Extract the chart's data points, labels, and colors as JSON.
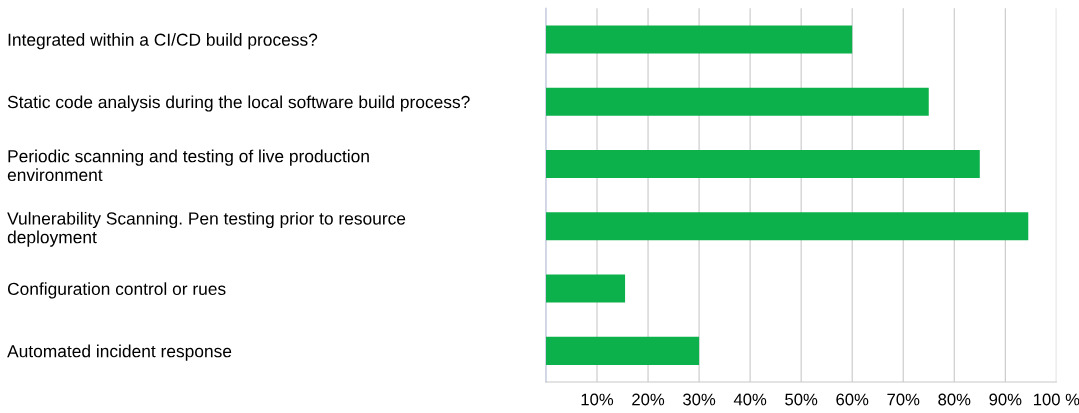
{
  "chart_data": {
    "type": "bar",
    "orientation": "horizontal",
    "categories": [
      "Integrated within a CI/CD build process?",
      "Static code analysis during the local software build process?",
      "Periodic scanning and testing of live production\nenvironment",
      "Vulnerability Scanning. Pen testing prior to resource\ndeployment",
      "Configuration control or rues",
      "Automated incident response"
    ],
    "values": [
      60,
      75,
      85,
      94.5,
      15.5,
      30
    ],
    "color": "#0db14b",
    "xlim": [
      0,
      100
    ],
    "xticks": [
      {
        "value": 10,
        "label": "10%"
      },
      {
        "value": 20,
        "label": "20%"
      },
      {
        "value": 30,
        "label": "30%"
      },
      {
        "value": 40,
        "label": "40%"
      },
      {
        "value": 50,
        "label": "50%"
      },
      {
        "value": 60,
        "label": "60%"
      },
      {
        "value": 70,
        "label": "70%"
      },
      {
        "value": 80,
        "label": "80%"
      },
      {
        "value": 90,
        "label": "90%"
      },
      {
        "value": 100,
        "label": "100 %"
      }
    ],
    "grid": "x"
  }
}
